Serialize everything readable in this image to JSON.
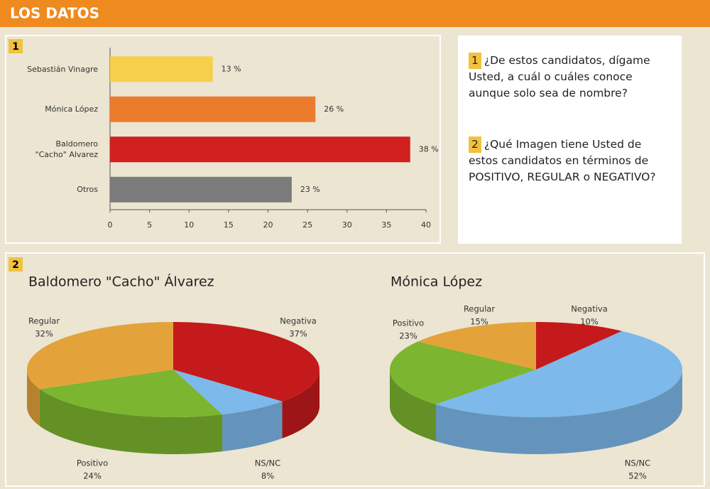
{
  "header": {
    "title": "LOS DATOS"
  },
  "sections": [
    "1",
    "2"
  ],
  "questions": [
    {
      "number": "1",
      "text": "¿De estos candidatos, dígame Usted, a cuál o cuáles conoce aunque solo sea de nombre?"
    },
    {
      "number": "2",
      "text": "¿Qué Imagen tiene Usted de estos candidatos en términos de POSITIVO, REGULAR o NEGATIVO?"
    }
  ],
  "chart_data": [
    {
      "type": "hbar",
      "categories": [
        "Sebastián Vinagre",
        "Mónica López",
        "Baldomero\n\"Cacho\" Alvarez",
        "Otros"
      ],
      "values": [
        13,
        26,
        38,
        23
      ],
      "value_labels": [
        "13 %",
        "26 %",
        "38 %",
        "23 %"
      ],
      "colors": [
        "#f6cf4c",
        "#ec7b2e",
        "#d0201f",
        "#7b7b7b"
      ],
      "xlim": [
        0,
        40
      ],
      "xticks": [
        0,
        5,
        10,
        15,
        20,
        25,
        30,
        35,
        40
      ]
    },
    {
      "type": "pie3d",
      "title": "Baldomero \"Cacho\" Álvarez",
      "categories": [
        "Negativa",
        "NS/NC",
        "Positivo",
        "Regular"
      ],
      "values": [
        37,
        8,
        24,
        32
      ],
      "value_labels": [
        "37%",
        "8%",
        "24%",
        "32%"
      ],
      "colors": [
        "#c41a1b",
        "#7db9ea",
        "#7cb52f",
        "#e3a33a"
      ]
    },
    {
      "type": "pie3d",
      "title": "Mónica López",
      "categories": [
        "Negativa",
        "NS/NC",
        "Positivo",
        "Regular"
      ],
      "values": [
        10,
        52,
        23,
        15
      ],
      "value_labels": [
        "10%",
        "52%",
        "23%",
        "15%"
      ],
      "colors": [
        "#c41a1b",
        "#7db9ea",
        "#7cb52f",
        "#e3a33a"
      ]
    }
  ]
}
